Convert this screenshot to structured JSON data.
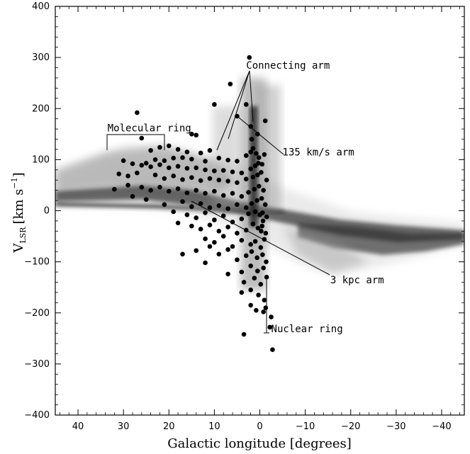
{
  "chart_data": {
    "type": "scatter",
    "title": "",
    "xlabel": "Galactic longitude [degrees]",
    "ylabel": "V",
    "ylabel_subscript": "LSR",
    "ylabel_units": "[km s",
    "ylabel_exponent": "−1",
    "ylabel_close": "]",
    "xlim": [
      45,
      -45
    ],
    "ylim": [
      -400,
      400
    ],
    "xticks": [
      40,
      30,
      20,
      10,
      0,
      -10,
      -20,
      -30,
      -40
    ],
    "xtick_labels": [
      "40",
      "30",
      "20",
      "10",
      "0",
      "−10",
      "−20",
      "−30",
      "−40"
    ],
    "yticks": [
      400,
      300,
      200,
      100,
      0,
      -100,
      -200,
      -300,
      -400
    ],
    "ytick_labels": [
      "400",
      "300",
      "200",
      "100",
      "0",
      "−100",
      "−200",
      "−300",
      "−400"
    ],
    "grid": false,
    "annotations": [
      {
        "text": "Connecting arm",
        "x": 3,
        "y": 278
      },
      {
        "text": "Molecular ring",
        "x": 33.5,
        "y": 155
      },
      {
        "text": "135 km/s arm",
        "x": -5,
        "y": 108
      },
      {
        "text": "3 kpc arm",
        "x": -15.5,
        "y": -142
      },
      {
        "text": "Nuclear ring",
        "x": -2.5,
        "y": -238
      }
    ],
    "series": [
      {
        "marker": "filled-circle",
        "points": [
          [
            2.3,
            300
          ],
          [
            6.5,
            248
          ],
          [
            10,
            208
          ],
          [
            27,
            192
          ],
          [
            3,
            208
          ],
          [
            -1.2,
            176
          ],
          [
            5,
            185
          ],
          [
            14,
            148
          ],
          [
            15,
            150
          ],
          [
            2,
            165
          ],
          [
            0.5,
            150
          ],
          [
            1.8,
            140
          ],
          [
            26,
            142
          ],
          [
            22,
            124
          ],
          [
            20,
            127
          ],
          [
            18,
            120
          ],
          [
            16,
            115
          ],
          [
            13,
            113
          ],
          [
            11,
            118
          ],
          [
            24,
            118
          ],
          [
            30,
            98
          ],
          [
            23,
            100
          ],
          [
            21,
            98
          ],
          [
            19,
            103
          ],
          [
            17,
            104
          ],
          [
            15,
            101
          ],
          [
            12,
            97
          ],
          [
            9,
            103
          ],
          [
            7,
            99
          ],
          [
            5,
            97
          ],
          [
            3,
            108
          ],
          [
            2,
            115
          ],
          [
            1.5,
            122
          ],
          [
            0.8,
            112
          ],
          [
            0.2,
            104
          ],
          [
            -1,
            110
          ],
          [
            28,
            92
          ],
          [
            26,
            89
          ],
          [
            25,
            93
          ],
          [
            24,
            86
          ],
          [
            22,
            90
          ],
          [
            20,
            84
          ],
          [
            18,
            87
          ],
          [
            16,
            83
          ],
          [
            14,
            84
          ],
          [
            12,
            80
          ],
          [
            10,
            78
          ],
          [
            8,
            79
          ],
          [
            6,
            76
          ],
          [
            4,
            74
          ],
          [
            2,
            82
          ],
          [
            1,
            88
          ],
          [
            0.3,
            93
          ],
          [
            -0.5,
            91
          ],
          [
            31,
            72
          ],
          [
            29,
            68
          ],
          [
            27,
            74
          ],
          [
            23,
            70
          ],
          [
            21,
            63
          ],
          [
            19,
            68
          ],
          [
            17,
            61
          ],
          [
            15,
            65
          ],
          [
            13,
            59
          ],
          [
            11,
            63
          ],
          [
            9,
            60
          ],
          [
            7,
            58
          ],
          [
            5,
            55
          ],
          [
            3,
            62
          ],
          [
            1.5,
            66
          ],
          [
            0.5,
            70
          ],
          [
            -0.3,
            75
          ],
          [
            -1.5,
            60
          ],
          [
            32,
            42
          ],
          [
            29,
            50
          ],
          [
            26,
            46
          ],
          [
            24,
            40
          ],
          [
            22,
            46
          ],
          [
            20,
            38
          ],
          [
            18,
            43
          ],
          [
            16,
            35
          ],
          [
            14,
            40
          ],
          [
            12,
            34
          ],
          [
            10,
            38
          ],
          [
            8,
            30
          ],
          [
            6,
            34
          ],
          [
            4,
            28
          ],
          [
            2.5,
            36
          ],
          [
            1.2,
            42
          ],
          [
            0.2,
            48
          ],
          [
            -0.8,
            40
          ],
          [
            28,
            28
          ],
          [
            25,
            22
          ],
          [
            21,
            12
          ],
          [
            17,
            18
          ],
          [
            15,
            8
          ],
          [
            13,
            14
          ],
          [
            11,
            6
          ],
          [
            9,
            10
          ],
          [
            7,
            4
          ],
          [
            5,
            12
          ],
          [
            3,
            6
          ],
          [
            1.8,
            14
          ],
          [
            0.6,
            20
          ],
          [
            -0.4,
            24
          ],
          [
            -1.2,
            12
          ],
          [
            19,
            -2
          ],
          [
            16,
            -8
          ],
          [
            14,
            -14
          ],
          [
            12,
            -4
          ],
          [
            10,
            -18
          ],
          [
            8,
            -10
          ],
          [
            6,
            -22
          ],
          [
            4,
            -16
          ],
          [
            2.5,
            -6
          ],
          [
            1,
            -2
          ],
          [
            0,
            -8
          ],
          [
            -0.6,
            -4
          ],
          [
            -1.5,
            -12
          ],
          [
            18,
            -24
          ],
          [
            15,
            -30
          ],
          [
            13,
            -36
          ],
          [
            11,
            -28
          ],
          [
            9,
            -40
          ],
          [
            7,
            -32
          ],
          [
            5,
            -44
          ],
          [
            3,
            -38
          ],
          [
            1.5,
            -26
          ],
          [
            0.4,
            -34
          ],
          [
            -0.5,
            -30
          ],
          [
            -1.3,
            -44
          ],
          [
            12,
            -55
          ],
          [
            10,
            -62
          ],
          [
            8,
            -50
          ],
          [
            6,
            -70
          ],
          [
            4,
            -58
          ],
          [
            2,
            -66
          ],
          [
            1,
            -60
          ],
          [
            -0.2,
            -72
          ],
          [
            -1,
            -56
          ],
          [
            17,
            -85
          ],
          [
            14,
            -78
          ],
          [
            11,
            -70
          ],
          [
            9,
            -85
          ],
          [
            7,
            -76
          ],
          [
            5,
            -96
          ],
          [
            3,
            -88
          ],
          [
            1.8,
            -80
          ],
          [
            0.6,
            -92
          ],
          [
            -0.6,
            -86
          ],
          [
            -1.4,
            -100
          ],
          [
            12,
            -102
          ],
          [
            7,
            -124
          ],
          [
            4,
            -120
          ],
          [
            2,
            -108
          ],
          [
            0.5,
            -118
          ],
          [
            -0.8,
            -112
          ],
          [
            3.5,
            -140
          ],
          [
            1.2,
            -132
          ],
          [
            -0.2,
            -144
          ],
          [
            -1.5,
            -130
          ],
          [
            4,
            -160
          ],
          [
            2,
            -155
          ],
          [
            0.3,
            -165
          ],
          [
            -1,
            -175
          ],
          [
            2,
            -185
          ],
          [
            0.8,
            -195
          ],
          [
            -0.8,
            -198
          ],
          [
            -1.3,
            -190
          ],
          [
            3.5,
            -242
          ],
          [
            -2.2,
            -228
          ],
          [
            -2.5,
            -208
          ],
          [
            -2.8,
            -272
          ],
          [
            -0.3,
            -40
          ],
          [
            -0.7,
            -20
          ]
        ]
      }
    ],
    "image_background": "grayscale CO emission longitude-velocity map"
  }
}
